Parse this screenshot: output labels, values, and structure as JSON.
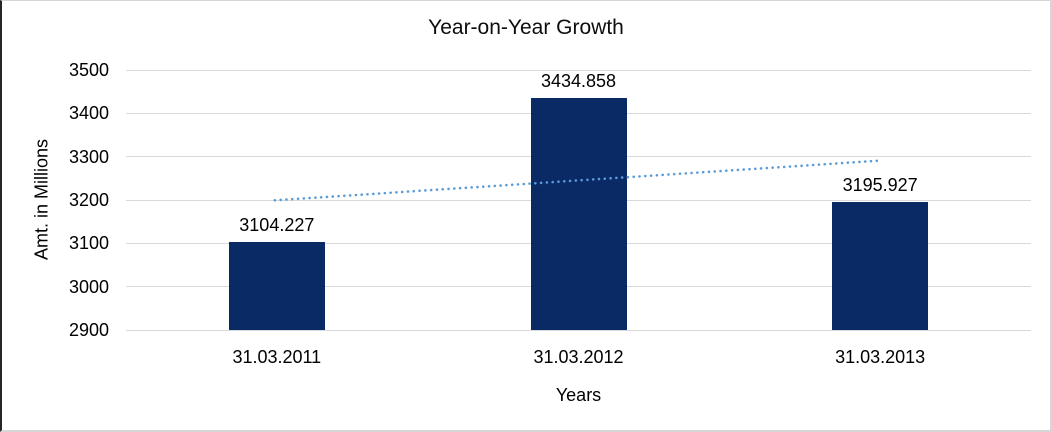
{
  "chart_data": {
    "type": "bar",
    "title": "Year-on-Year Growth",
    "xlabel": "Years",
    "ylabel": "Amt. in Millions",
    "categories": [
      "31.03.2011",
      "31.03.2012",
      "31.03.2013"
    ],
    "values": [
      3104.227,
      3434.858,
      3195.927
    ],
    "data_labels": [
      "3104.227",
      "3434.858",
      "3195.927"
    ],
    "yticks": [
      2900,
      3000,
      3100,
      3200,
      3300,
      3400,
      3500
    ],
    "ylim": [
      2900,
      3500
    ],
    "grid": true,
    "legend": false,
    "bar_color": "#0a2a66",
    "gridline_color": "#d9d9d9",
    "trendline": {
      "style": "dotted",
      "color": "#5b9bd5",
      "start_value": 3199.2,
      "end_value": 3290.9
    }
  }
}
